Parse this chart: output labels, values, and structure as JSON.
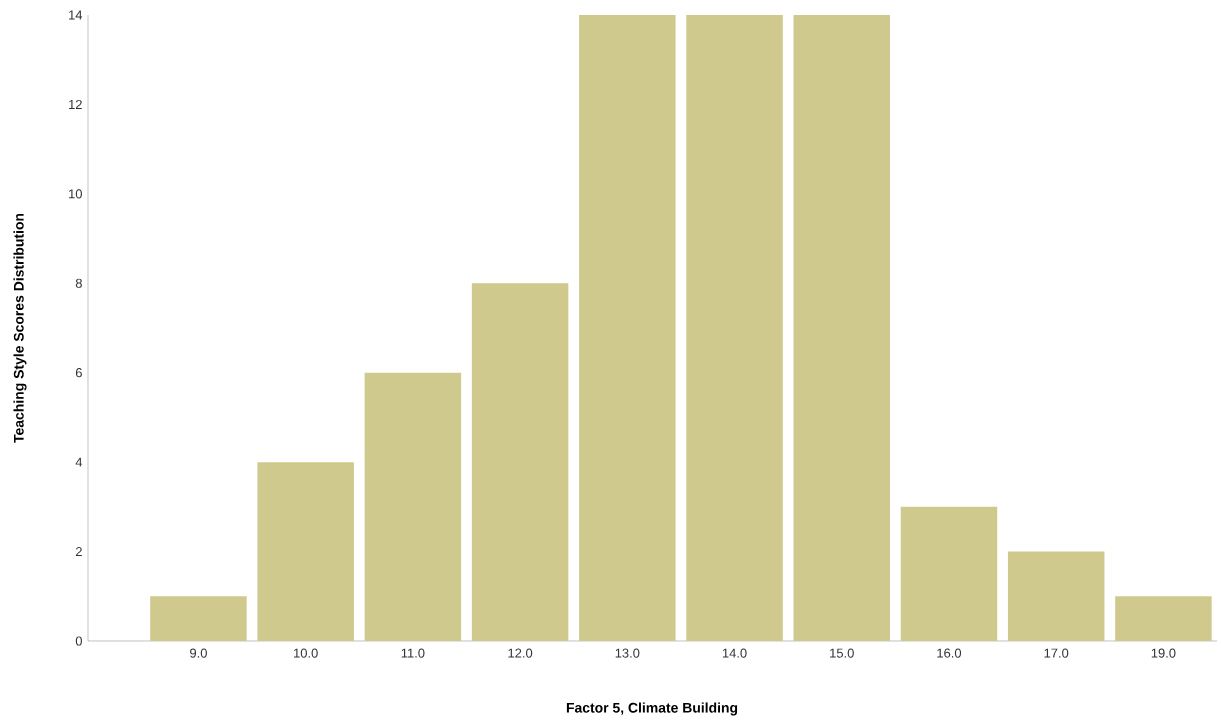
{
  "chart_data": {
    "type": "bar",
    "xlabel": "Factor 5, Climate Building",
    "ylabel": "Teaching Style Scores Distribution",
    "categories": [
      "9.0",
      "10.0",
      "11.0",
      "12.0",
      "13.0",
      "14.0",
      "15.0",
      "16.0",
      "17.0",
      "19.0"
    ],
    "values": [
      1,
      4,
      6,
      8,
      14,
      14,
      14,
      3,
      2,
      1
    ],
    "color": "#d0c98e",
    "ylim": [
      0,
      14
    ],
    "yticks": [
      0,
      2,
      4,
      6,
      8,
      10,
      12,
      14
    ],
    "grid": false
  }
}
